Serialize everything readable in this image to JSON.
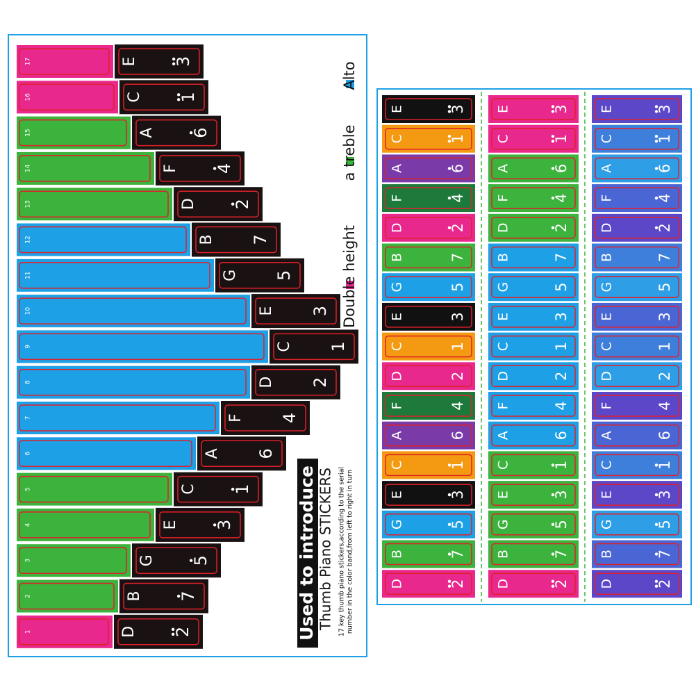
{
  "legend": [
    {
      "label": "Double height",
      "color": "#e8288c"
    },
    {
      "label": "a treble",
      "color": "#3cb33c"
    },
    {
      "label": "Alto",
      "color": "#1ea0e6"
    }
  ],
  "intro": {
    "title": "Used to introduce",
    "subtitle": "Thumb Piano STICKERS",
    "line1": "17 key thumb piano stickers,according to the serial",
    "line2": "number in the color band,from left to right in turn"
  },
  "notes": [
    {
      "key": "17",
      "letter": "E",
      "number": "3",
      "dots": 2
    },
    {
      "key": "16",
      "letter": "C",
      "number": "1",
      "dots": 2
    },
    {
      "key": "15",
      "letter": "A",
      "number": "6",
      "dots": 1
    },
    {
      "key": "14",
      "letter": "F",
      "number": "4",
      "dots": 1
    },
    {
      "key": "13",
      "letter": "D",
      "number": "2",
      "dots": 1
    },
    {
      "key": "12",
      "letter": "B",
      "number": "7",
      "dots": 0
    },
    {
      "key": "11",
      "letter": "G",
      "number": "5",
      "dots": 0
    },
    {
      "key": "10",
      "letter": "E",
      "number": "3",
      "dots": 0
    },
    {
      "key": "9",
      "letter": "C",
      "number": "1",
      "dots": 0
    },
    {
      "key": "8",
      "letter": "D",
      "number": "2",
      "dots": 0
    },
    {
      "key": "7",
      "letter": "F",
      "number": "4",
      "dots": 0
    },
    {
      "key": "6",
      "letter": "A",
      "number": "6",
      "dots": 0
    },
    {
      "key": "5",
      "letter": "C",
      "number": "1",
      "dots": 1
    },
    {
      "key": "4",
      "letter": "E",
      "number": "3",
      "dots": 1
    },
    {
      "key": "3",
      "letter": "G",
      "number": "5",
      "dots": 1
    },
    {
      "key": "2",
      "letter": "B",
      "number": "7",
      "dots": 1
    },
    {
      "key": "1",
      "letter": "D",
      "number": "2",
      "dots": 2
    }
  ],
  "band_colors": [
    "#e8288c",
    "#e8288c",
    "#3cb33c",
    "#3cb33c",
    "#3cb33c",
    "#1ea0e6",
    "#1ea0e6",
    "#1ea0e6",
    "#1ea0e6",
    "#1ea0e6",
    "#1ea0e6",
    "#1ea0e6",
    "#3cb33c",
    "#3cb33c",
    "#3cb33c",
    "#3cb33c",
    "#e8288c"
  ],
  "sticker_columns": [
    [
      "#111111",
      "#f39a12",
      "#7a3aa8",
      "#1e7a3a",
      "#e8288c",
      "#3cb33c",
      "#1ea0e6",
      "#111111",
      "#f39a12",
      "#e8288c",
      "#1e7a3a",
      "#7a3aa8",
      "#f39a12",
      "#111111",
      "#1ea0e6",
      "#3cb33c",
      "#e8288c"
    ],
    [
      "#e8288c",
      "#e8288c",
      "#3cb33c",
      "#3cb33c",
      "#3cb33c",
      "#1ea0e6",
      "#1ea0e6",
      "#1ea0e6",
      "#1ea0e6",
      "#1ea0e6",
      "#1ea0e6",
      "#1ea0e6",
      "#3cb33c",
      "#3cb33c",
      "#3cb33c",
      "#3cb33c",
      "#e8288c"
    ],
    [
      "#5b47c8",
      "#3f7fdc",
      "#2e9ee6",
      "#4a66d4",
      "#5b47c8",
      "#3f7fdc",
      "#2e9ee6",
      "#4a66d4",
      "#3f7fdc",
      "#2e9ee6",
      "#5b47c8",
      "#4a66d4",
      "#3f7fdc",
      "#5b47c8",
      "#2e9ee6",
      "#4a66d4",
      "#5b47c8"
    ]
  ]
}
